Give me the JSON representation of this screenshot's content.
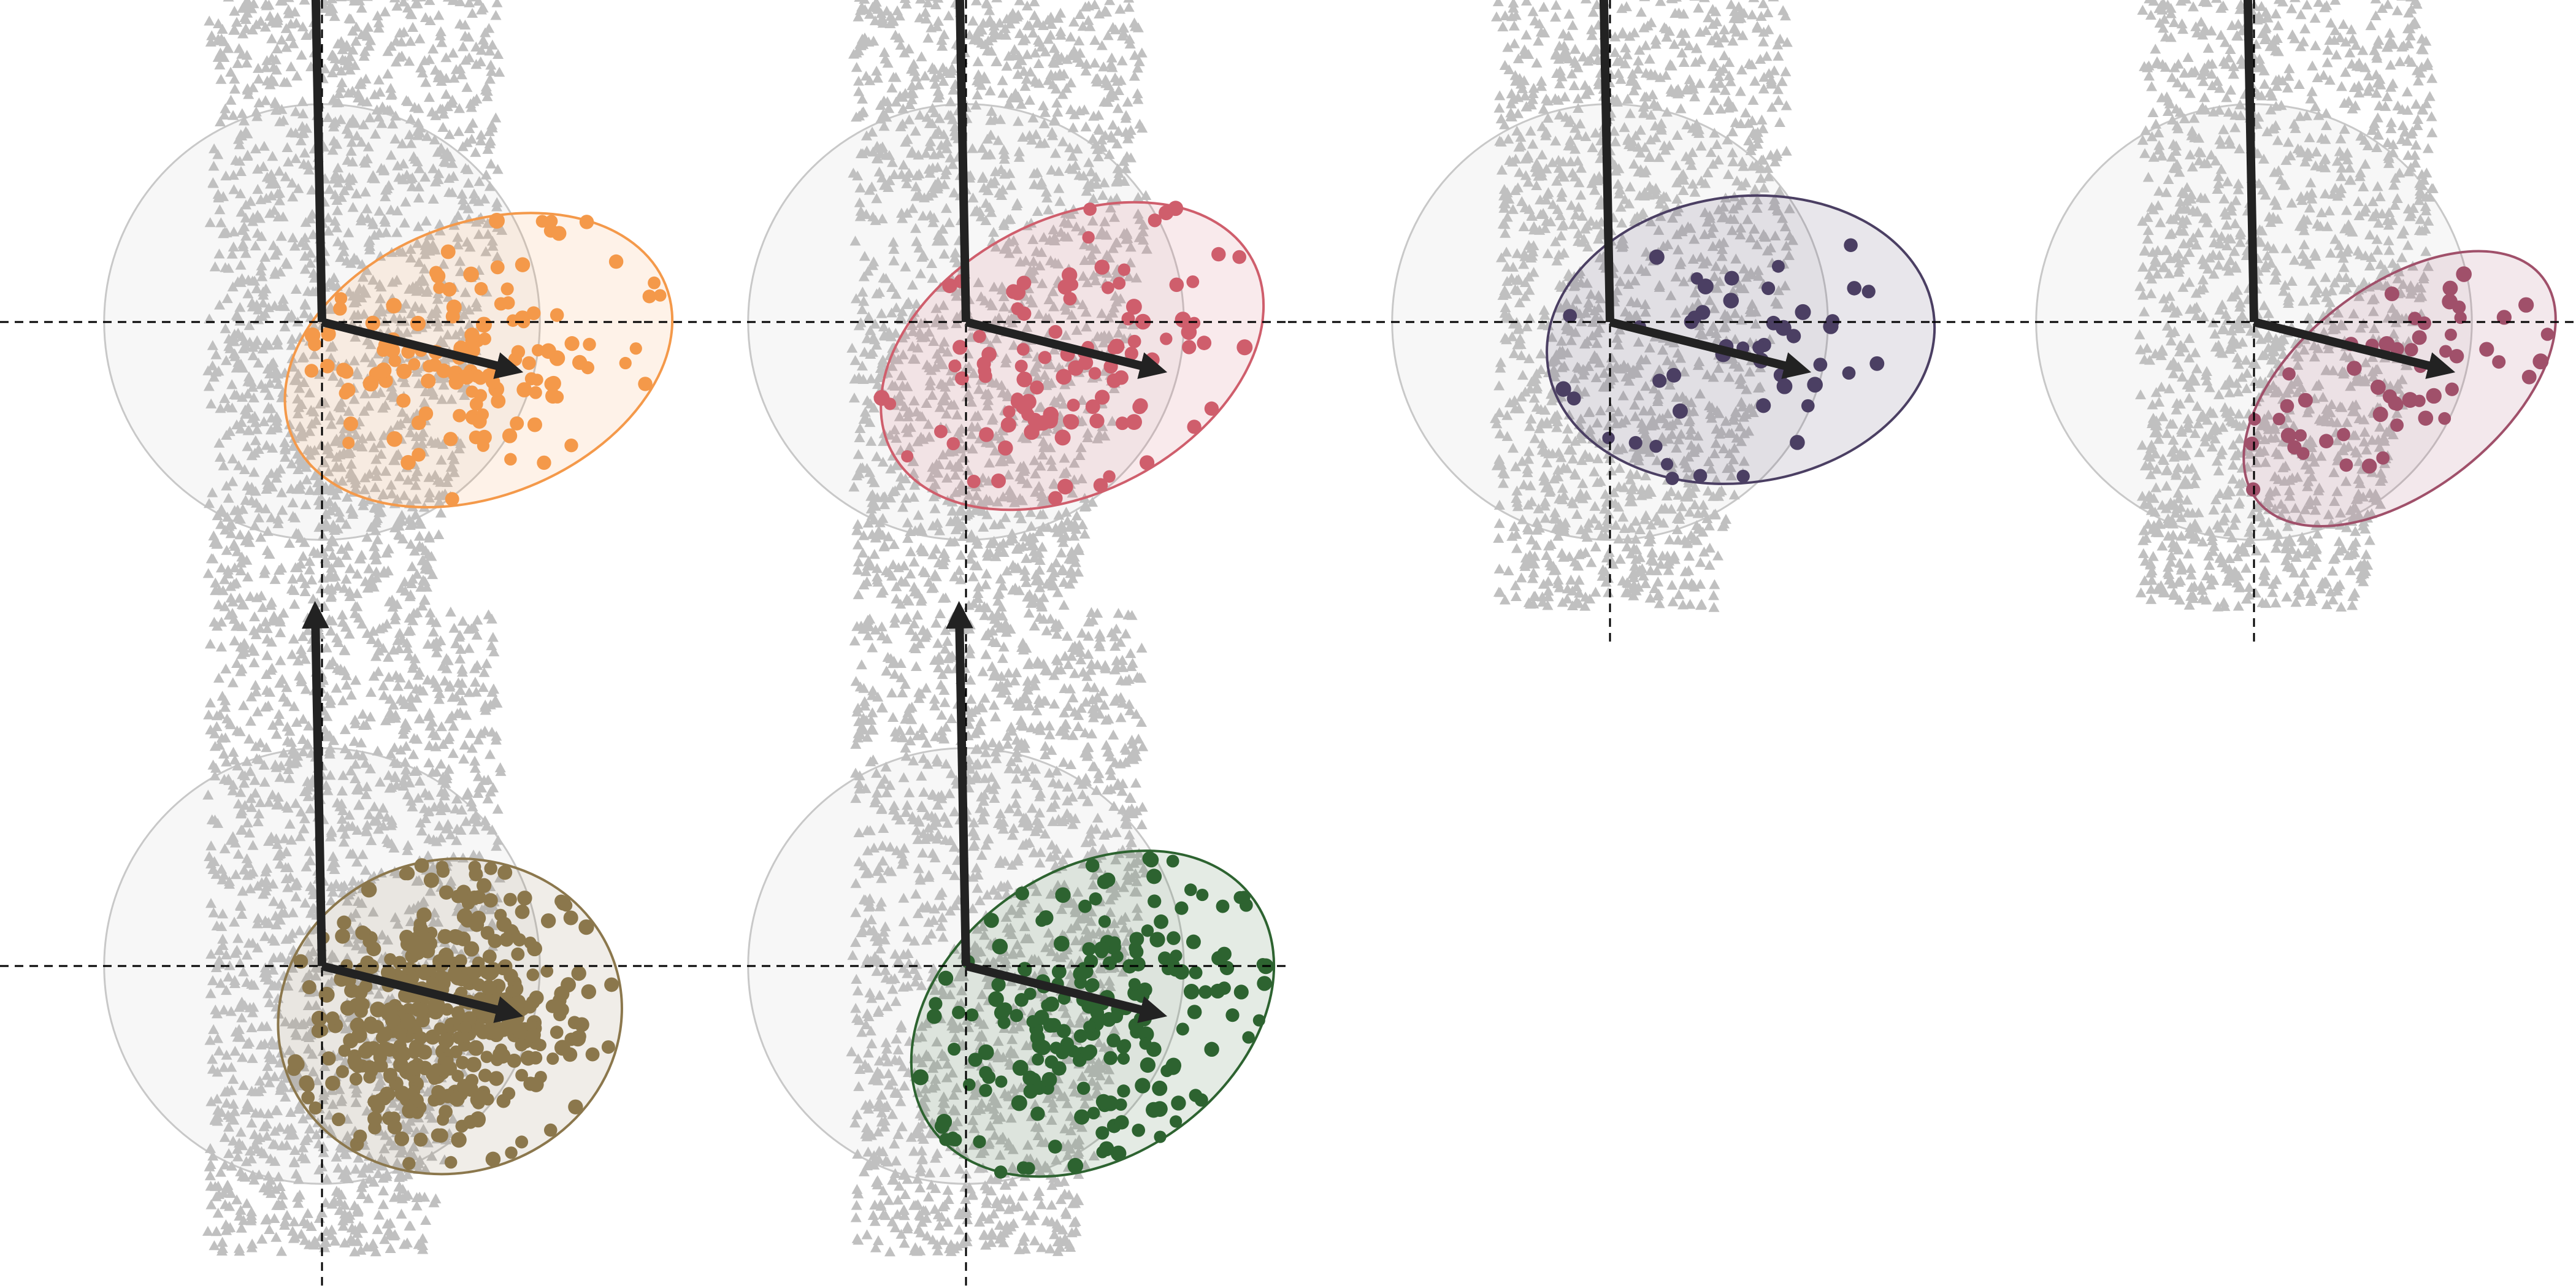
{
  "figure": {
    "background": "#ffffff",
    "background_points_color": "#c0c0c0",
    "circle_color": "#c8c8c8",
    "axis_arrow_color": "#222222",
    "dashed_line_color": "#000000"
  },
  "chart_data": [
    {
      "type": "scatter",
      "title": "",
      "xlabel": "",
      "ylabel": "",
      "xlim": [
        -3.2,
        3.2
      ],
      "ylim": [
        -3.2,
        3.2
      ],
      "grid": false,
      "legend": "none",
      "color": "#f4994a",
      "reference_circle": {
        "cx": 0,
        "cy": 0,
        "r": 1.6
      },
      "axis_arrows": [
        {
          "name": "vertical",
          "from": [
            0,
            0
          ],
          "to": [
            -0.05,
            2.6
          ]
        },
        {
          "name": "horizontal",
          "from": [
            0,
            0
          ],
          "to": [
            1.4,
            -0.35
          ]
        }
      ],
      "ellipse": {
        "cx": 1.15,
        "cy": -0.28,
        "rx": 1.48,
        "ry": 1.0,
        "angle_deg": 22
      },
      "seed": 11,
      "n_points": 130
    },
    {
      "type": "scatter",
      "title": "",
      "xlabel": "",
      "ylabel": "",
      "xlim": [
        -3.2,
        3.2
      ],
      "ylim": [
        -3.2,
        3.2
      ],
      "grid": false,
      "legend": "none",
      "color": "#cf5e6c",
      "reference_circle": {
        "cx": 0,
        "cy": 0,
        "r": 1.6
      },
      "axis_arrows": [
        {
          "name": "vertical",
          "from": [
            0,
            0
          ],
          "to": [
            -0.05,
            2.6
          ]
        },
        {
          "name": "horizontal",
          "from": [
            0,
            0
          ],
          "to": [
            1.4,
            -0.35
          ]
        }
      ],
      "ellipse": {
        "cx": 0.78,
        "cy": -0.25,
        "rx": 1.5,
        "ry": 1.0,
        "angle_deg": 28
      },
      "seed": 23,
      "n_points": 105
    },
    {
      "type": "scatter",
      "title": "",
      "xlabel": "",
      "ylabel": "",
      "xlim": [
        -3.2,
        3.2
      ],
      "ylim": [
        -3.2,
        3.2
      ],
      "grid": false,
      "legend": "none",
      "color": "#4b3f63",
      "reference_circle": {
        "cx": 0,
        "cy": 0,
        "r": 1.6
      },
      "axis_arrows": [
        {
          "name": "vertical",
          "from": [
            0,
            0
          ],
          "to": [
            -0.05,
            2.6
          ]
        },
        {
          "name": "horizontal",
          "from": [
            0,
            0
          ],
          "to": [
            1.4,
            -0.35
          ]
        }
      ],
      "ellipse": {
        "cx": 0.96,
        "cy": -0.13,
        "rx": 1.43,
        "ry": 1.05,
        "angle_deg": 8
      },
      "seed": 37,
      "n_points": 48
    },
    {
      "type": "scatter",
      "title": "",
      "xlabel": "",
      "ylabel": "",
      "xlim": [
        -3.2,
        3.2
      ],
      "ylim": [
        -3.2,
        3.2
      ],
      "grid": false,
      "legend": "none",
      "color": "#a0506a",
      "reference_circle": {
        "cx": 0,
        "cy": 0,
        "r": 1.6
      },
      "axis_arrows": [
        {
          "name": "vertical",
          "from": [
            0,
            0
          ],
          "to": [
            -0.05,
            2.6
          ]
        },
        {
          "name": "horizontal",
          "from": [
            0,
            0
          ],
          "to": [
            1.4,
            -0.35
          ]
        }
      ],
      "ellipse": {
        "cx": 1.07,
        "cy": -0.49,
        "rx": 1.33,
        "ry": 0.75,
        "angle_deg": 38
      },
      "seed": 41,
      "n_points": 55
    },
    {
      "type": "scatter",
      "title": "",
      "xlabel": "",
      "ylabel": "",
      "xlim": [
        -3.2,
        3.2
      ],
      "ylim": [
        -3.2,
        3.2
      ],
      "grid": false,
      "legend": "none",
      "color": "#8b774c",
      "reference_circle": {
        "cx": 0,
        "cy": 0,
        "r": 1.6
      },
      "axis_arrows": [
        {
          "name": "vertical",
          "from": [
            0,
            0
          ],
          "to": [
            -0.05,
            2.6
          ]
        },
        {
          "name": "horizontal",
          "from": [
            0,
            0
          ],
          "to": [
            1.4,
            -0.35
          ]
        }
      ],
      "ellipse": {
        "cx": 0.94,
        "cy": -0.37,
        "rx": 1.27,
        "ry": 1.15,
        "angle_deg": 15
      },
      "seed": 53,
      "n_points": 420
    },
    {
      "type": "scatter",
      "title": "",
      "xlabel": "",
      "ylabel": "",
      "xlim": [
        -3.2,
        3.2
      ],
      "ylim": [
        -3.2,
        3.2
      ],
      "grid": false,
      "legend": "none",
      "color": "#2d6330",
      "reference_circle": {
        "cx": 0,
        "cy": 0,
        "r": 1.6
      },
      "axis_arrows": [
        {
          "name": "vertical",
          "from": [
            0,
            0
          ],
          "to": [
            -0.05,
            2.6
          ]
        },
        {
          "name": "horizontal",
          "from": [
            0,
            0
          ],
          "to": [
            1.4,
            -0.35
          ]
        }
      ],
      "ellipse": {
        "cx": 0.93,
        "cy": -0.35,
        "rx": 1.45,
        "ry": 1.05,
        "angle_deg": 35
      },
      "seed": 67,
      "n_points": 210
    }
  ]
}
